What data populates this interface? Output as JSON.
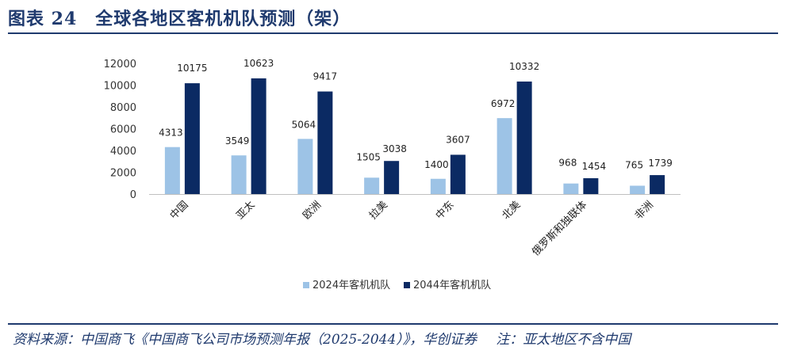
{
  "header": {
    "title": "图表 24　全球各地区客机机队预测（架）"
  },
  "footer": {
    "source": "资料来源：中国商飞《中国商飞公司市场预测年报（2025-2044）》，华创证券",
    "note": "注：亚太地区不含中国"
  },
  "colors": {
    "series_2024": "#9dc3e6",
    "series_2044": "#0b2a63",
    "brand": "#1f3a6e"
  },
  "chart_data": {
    "type": "bar",
    "categories": [
      "中国",
      "亚太",
      "欧洲",
      "拉美",
      "中东",
      "北美",
      "俄罗斯和独联体",
      "非洲"
    ],
    "series": [
      {
        "name": "2024年客机机队",
        "values": [
          4313,
          3549,
          5064,
          1505,
          1400,
          6972,
          968,
          765
        ]
      },
      {
        "name": "2044年客机机队",
        "values": [
          10175,
          10623,
          9417,
          3038,
          3607,
          10332,
          1454,
          1739
        ]
      }
    ],
    "ylim": [
      0,
      12000
    ],
    "yticks": [
      0,
      2000,
      4000,
      6000,
      8000,
      10000,
      12000
    ],
    "grid": false,
    "legend_position": "bottom"
  }
}
